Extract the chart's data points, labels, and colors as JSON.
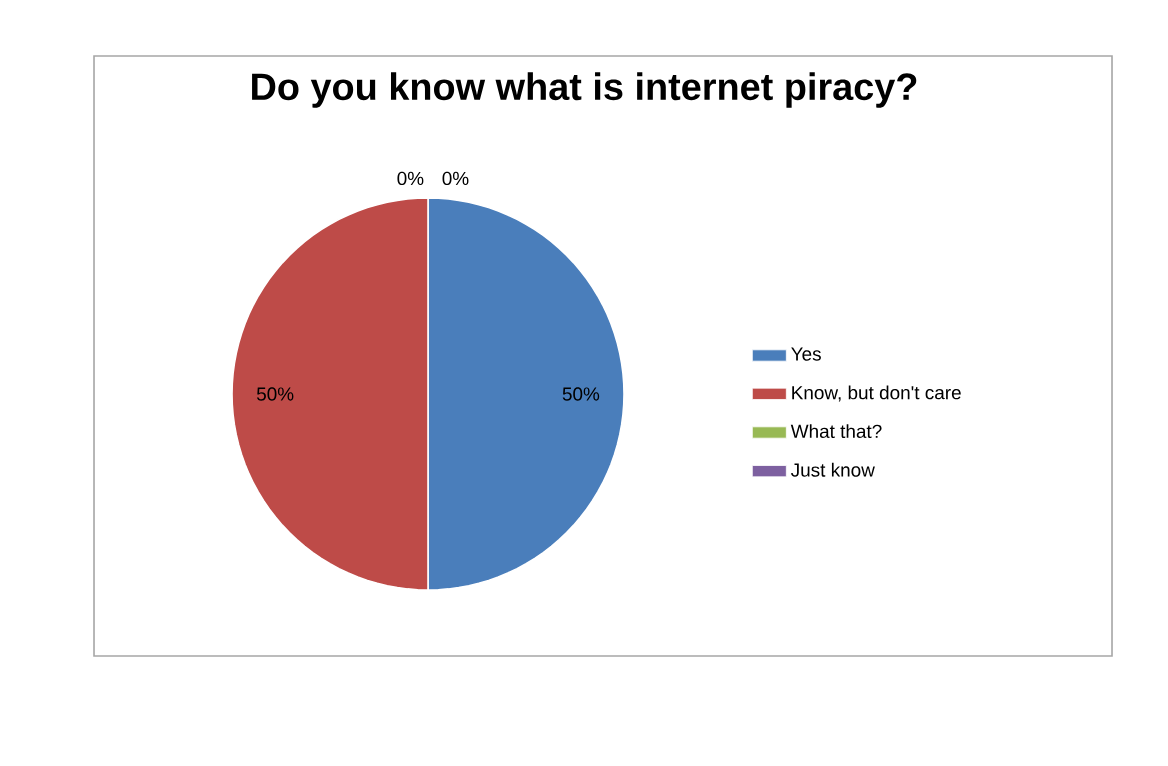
{
  "chart_data": {
    "type": "pie",
    "title": "Do you know what is internet piracy?",
    "categories": [
      "Yes",
      "Know, but don't care",
      "What that?",
      "Just know"
    ],
    "values": [
      50,
      50,
      0,
      0
    ],
    "colors": [
      "#4a7ebb",
      "#be4b48",
      "#98b954",
      "#7d60a0"
    ],
    "value_labels": [
      "50%",
      "50%",
      "0%",
      "0%"
    ],
    "legend": "right"
  }
}
